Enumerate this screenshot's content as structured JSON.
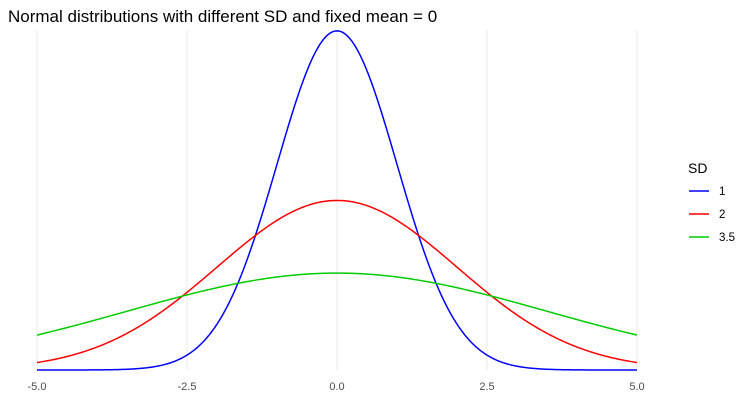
{
  "chart_data": {
    "type": "line",
    "title": "Normal distributions with different SD and fixed mean = 0",
    "xlabel": "",
    "ylabel": "",
    "xlim": [
      -5,
      5
    ],
    "ylim": [
      0,
      0.4
    ],
    "x_ticks": [
      -5,
      -2.5,
      0,
      2.5,
      5
    ],
    "x_tick_labels": [
      "-5.0",
      "-2.5",
      "0.0",
      "2.5",
      "5.0"
    ],
    "y_tick_labels_shown": false,
    "grid": "vertical major only",
    "legend_title": "SD",
    "legend_position": "right",
    "mean": 0,
    "series": [
      {
        "name": "1",
        "sd": 1,
        "color": "#0000ff"
      },
      {
        "name": "2",
        "sd": 2,
        "color": "#ff0000"
      },
      {
        "name": "3.5",
        "sd": 3.5,
        "color": "#00cc00"
      }
    ],
    "x": [
      -5,
      -4.5,
      -4,
      -3.5,
      -3,
      -2.5,
      -2,
      -1.5,
      -1,
      -0.5,
      0,
      0.5,
      1,
      1.5,
      2,
      2.5,
      3,
      3.5,
      4,
      4.5,
      5
    ]
  }
}
